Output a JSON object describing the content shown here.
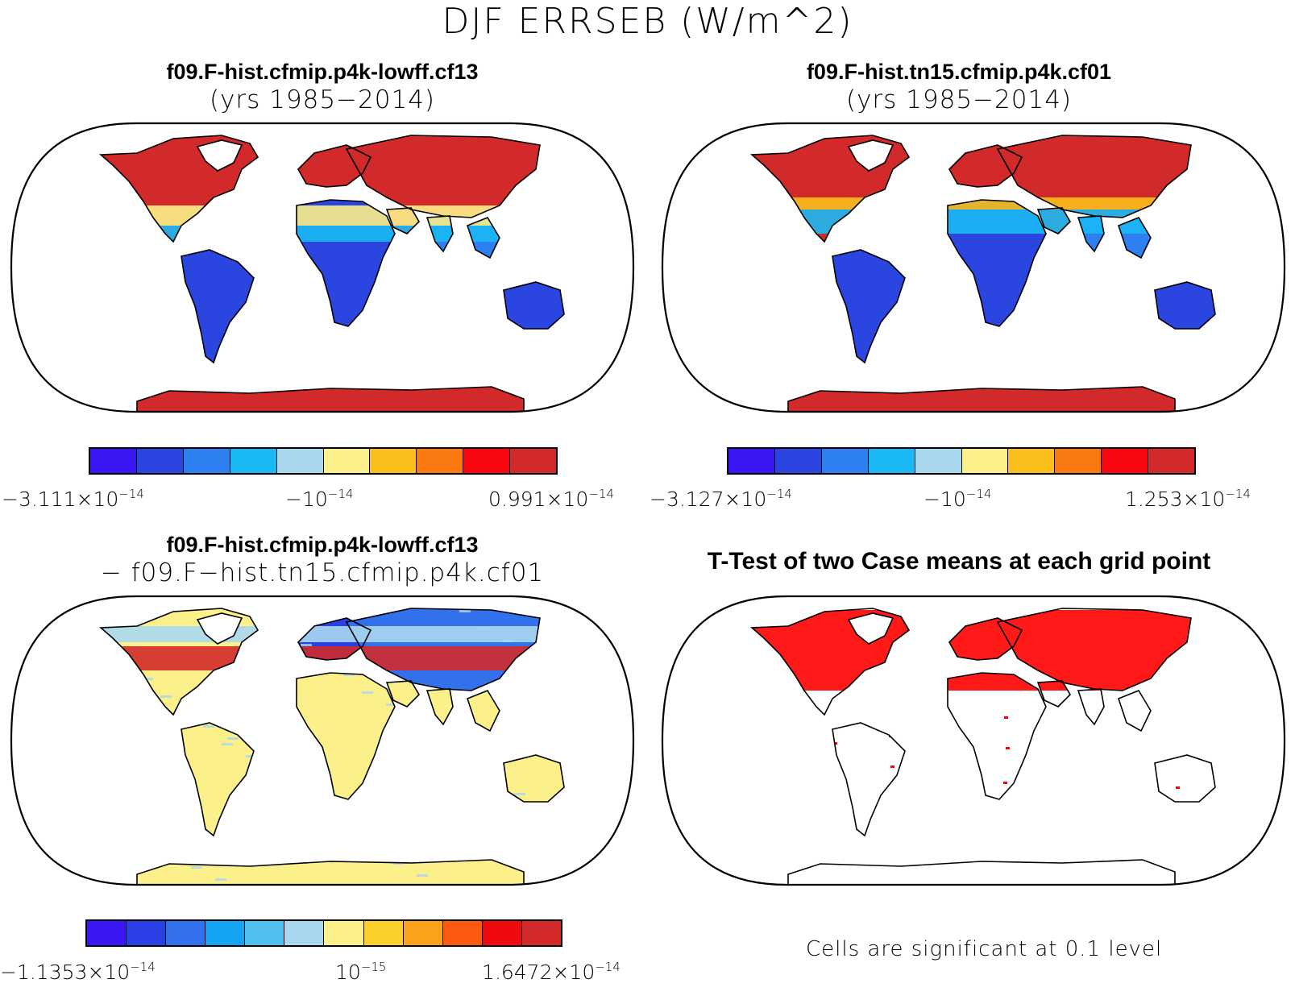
{
  "title": "DJF ERRSEB (W/m^2)",
  "panels": [
    {
      "id": "case1",
      "title": "f09.F-hist.cfmip.p4k-lowff.cf13",
      "subtitle": "(yrs 1985−2014)",
      "colorbar": {
        "colors": [
          "#3b17f5",
          "#2b45e0",
          "#2e7ff0",
          "#1ab9f5",
          "#a8d8f0",
          "#fbf08a",
          "#fbbf1c",
          "#fb7a10",
          "#f8080e",
          "#d22a2a"
        ],
        "labels": [
          {
            "mant": "−3.111×10",
            "exp": "−14"
          },
          {
            "mant": "−10",
            "exp": "−14"
          },
          {
            "mant": "0.991×10",
            "exp": "−14"
          }
        ]
      }
    },
    {
      "id": "case2",
      "title": "f09.F-hist.tn15.cfmip.p4k.cf01",
      "subtitle": "(yrs 1985−2014)",
      "colorbar": {
        "colors": [
          "#3b17f5",
          "#2b45e0",
          "#2e7ff0",
          "#1ab9f5",
          "#a8d8f0",
          "#fbf08a",
          "#fbbf1c",
          "#fb7a10",
          "#f8080e",
          "#d22a2a"
        ],
        "labels": [
          {
            "mant": "−3.127×10",
            "exp": "−14"
          },
          {
            "mant": "−10",
            "exp": "−14"
          },
          {
            "mant": "1.253×10",
            "exp": "−14"
          }
        ]
      }
    },
    {
      "id": "diff",
      "title": "f09.F-hist.cfmip.p4k-lowff.cf13",
      "subtitle": "− f09.F−hist.tn15.cfmip.p4k.cf01",
      "colorbar": {
        "colors": [
          "#3b17f5",
          "#2b3fe6",
          "#3270ec",
          "#14a4f2",
          "#52c0ee",
          "#a8d8f0",
          "#fbf08a",
          "#fcd02a",
          "#fba21a",
          "#fb5a10",
          "#ee0a0e",
          "#d22a2a"
        ],
        "labels": [
          {
            "mant": "−1.1353×10",
            "exp": "−14"
          },
          {
            "mant": "10",
            "exp": "−15"
          },
          {
            "mant": "1.6472×10",
            "exp": "−14"
          }
        ]
      }
    },
    {
      "id": "ttest",
      "title": "T-Test of two Case means at each grid point",
      "note": "Cells are significant at 0.1 level"
    }
  ],
  "colors": {
    "ocean": "#ffffff",
    "coast": "#000000",
    "significant": "#ff0000"
  }
}
